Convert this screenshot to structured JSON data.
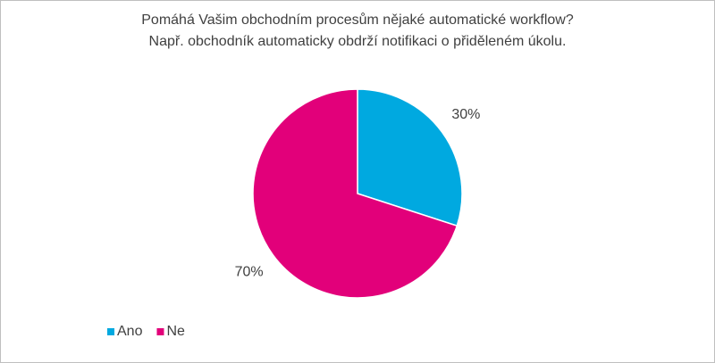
{
  "chart_data": {
    "type": "pie",
    "title": [
      "Pomáhá Vašim obchodním procesům nějaké automatické workflow?",
      "Např. obchodník automaticky obdrží notifikaci o přiděleném úkolu."
    ],
    "categories": [
      "Ano",
      "Ne"
    ],
    "values": [
      30,
      70
    ],
    "value_labels": [
      "30%",
      "70%"
    ],
    "colors": [
      "#00a9e0",
      "#e2007a"
    ],
    "legend": "bottom-left"
  }
}
